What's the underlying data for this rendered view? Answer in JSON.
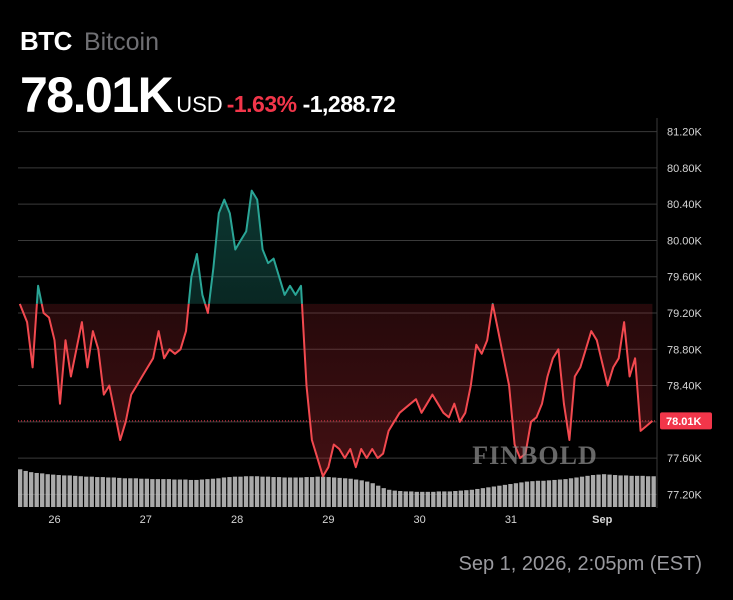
{
  "header": {
    "ticker": "BTC",
    "name": "Bitcoin",
    "price": "78.01K",
    "currency": "USD",
    "change_pct": "-1.63%",
    "change_abs": "-1,288.72"
  },
  "colors": {
    "background": "#000000",
    "up_line": "#2aa596",
    "down_line": "#f2494f",
    "price_tag": "#f2364a",
    "volume": "#c8c8c8",
    "grid": "#3a3a3a",
    "axis_text": "#d6d6d6"
  },
  "watermark": "FINBOLD",
  "timestamp": "Sep 1, 2026, 2:05pm (EST)",
  "chart_data": {
    "type": "line",
    "title": "",
    "xlabel": "",
    "ylabel": "",
    "baseline": 79.3,
    "ylim": [
      77.05,
      81.35
    ],
    "xlim": [
      25.6,
      32.6
    ],
    "y_ticks": [
      77.2,
      77.6,
      78.0,
      78.4,
      78.8,
      79.2,
      79.6,
      80.0,
      80.4,
      80.8,
      81.2
    ],
    "y_tick_labels": [
      "77.20K",
      "77.60K",
      "78.00K",
      "78.40K",
      "78.80K",
      "79.20K",
      "79.60K",
      "80.00K",
      "80.40K",
      "80.80K",
      "81.20K"
    ],
    "x_ticks": [
      26,
      27,
      28,
      29,
      30,
      31,
      32
    ],
    "x_tick_labels": [
      "26",
      "27",
      "28",
      "29",
      "30",
      "31",
      "Sep"
    ],
    "current_price_label": "78.01K",
    "current_price": 78.01,
    "grid": true,
    "series": [
      {
        "x": [
          25.62,
          25.7,
          25.76,
          25.82,
          25.88,
          25.94,
          26.0,
          26.06,
          26.12,
          26.18,
          26.24,
          26.3,
          26.36,
          26.42,
          26.48,
          26.54,
          26.6,
          26.66,
          26.72,
          26.78,
          26.84,
          26.9,
          26.96,
          27.02,
          27.08,
          27.14,
          27.2,
          27.26,
          27.32,
          27.38,
          27.44,
          27.5,
          27.56,
          27.62,
          27.68,
          27.74,
          27.8,
          27.86,
          27.92,
          27.98,
          28.04,
          28.1,
          28.16,
          28.22,
          28.28,
          28.34,
          28.4,
          28.46,
          28.52,
          28.58,
          28.64,
          28.7,
          28.76,
          28.82,
          28.88,
          28.94,
          29.0,
          29.06,
          29.12,
          29.18,
          29.24,
          29.3,
          29.36,
          29.42,
          29.48,
          29.54,
          29.6,
          29.66,
          29.72,
          29.78,
          29.84,
          29.9,
          29.96,
          30.02,
          30.08,
          30.14,
          30.2,
          30.26,
          30.32,
          30.38,
          30.44,
          30.5,
          30.56,
          30.62,
          30.68,
          30.74,
          30.8,
          30.86,
          30.92,
          30.98,
          31.04,
          31.1,
          31.16,
          31.22,
          31.28,
          31.34,
          31.4,
          31.46,
          31.52,
          31.58,
          31.64,
          31.7,
          31.76,
          31.82,
          31.88,
          31.94,
          32.0,
          32.06,
          32.12,
          32.18,
          32.24,
          32.3,
          32.36,
          32.42,
          32.48,
          32.55
        ],
        "values": [
          79.3,
          79.1,
          78.6,
          79.5,
          79.2,
          79.15,
          78.9,
          78.2,
          78.9,
          78.5,
          78.8,
          79.1,
          78.6,
          79.0,
          78.8,
          78.3,
          78.4,
          78.1,
          77.8,
          78.0,
          78.3,
          78.4,
          78.5,
          78.6,
          78.7,
          79.0,
          78.7,
          78.8,
          78.75,
          78.8,
          79.0,
          79.6,
          79.85,
          79.4,
          79.2,
          79.7,
          80.3,
          80.45,
          80.3,
          79.9,
          80.0,
          80.1,
          80.55,
          80.45,
          79.9,
          79.75,
          79.8,
          79.6,
          79.4,
          79.5,
          79.4,
          79.5,
          78.4,
          77.8,
          77.6,
          77.4,
          77.5,
          77.75,
          77.7,
          77.6,
          77.7,
          77.5,
          77.7,
          77.6,
          77.7,
          77.6,
          77.65,
          77.9,
          78.0,
          78.1,
          78.15,
          78.2,
          78.25,
          78.1,
          78.2,
          78.3,
          78.2,
          78.1,
          78.05,
          78.2,
          78.0,
          78.1,
          78.4,
          78.85,
          78.75,
          78.9,
          79.3,
          79.0,
          78.7,
          78.4,
          77.75,
          77.6,
          77.65,
          78.0,
          78.05,
          78.2,
          78.5,
          78.7,
          78.8,
          78.2,
          77.8,
          78.5,
          78.6,
          78.8,
          79.0,
          78.9,
          78.65,
          78.4,
          78.6,
          78.7,
          79.1,
          78.5,
          78.7,
          77.9,
          77.95,
          78.01
        ]
      }
    ],
    "volume": [
      0.92,
      0.88,
      0.85,
      0.83,
      0.82,
      0.8,
      0.79,
      0.78,
      0.77,
      0.77,
      0.76,
      0.75,
      0.74,
      0.74,
      0.73,
      0.73,
      0.72,
      0.72,
      0.71,
      0.7,
      0.7,
      0.7,
      0.69,
      0.69,
      0.68,
      0.68,
      0.68,
      0.68,
      0.67,
      0.67,
      0.67,
      0.66,
      0.66,
      0.67,
      0.68,
      0.69,
      0.7,
      0.72,
      0.73,
      0.74,
      0.74,
      0.75,
      0.75,
      0.75,
      0.74,
      0.74,
      0.73,
      0.73,
      0.72,
      0.72,
      0.72,
      0.72,
      0.73,
      0.73,
      0.74,
      0.74,
      0.73,
      0.72,
      0.71,
      0.7,
      0.69,
      0.67,
      0.65,
      0.62,
      0.58,
      0.52,
      0.46,
      0.42,
      0.4,
      0.39,
      0.38,
      0.38,
      0.37,
      0.37,
      0.37,
      0.37,
      0.38,
      0.38,
      0.38,
      0.39,
      0.4,
      0.41,
      0.42,
      0.44,
      0.46,
      0.48,
      0.5,
      0.52,
      0.54,
      0.56,
      0.58,
      0.6,
      0.62,
      0.63,
      0.64,
      0.64,
      0.65,
      0.66,
      0.67,
      0.68,
      0.7,
      0.72,
      0.74,
      0.76,
      0.78,
      0.79,
      0.8,
      0.79,
      0.78,
      0.77,
      0.77,
      0.76,
      0.76,
      0.76,
      0.75,
      0.75
    ]
  }
}
